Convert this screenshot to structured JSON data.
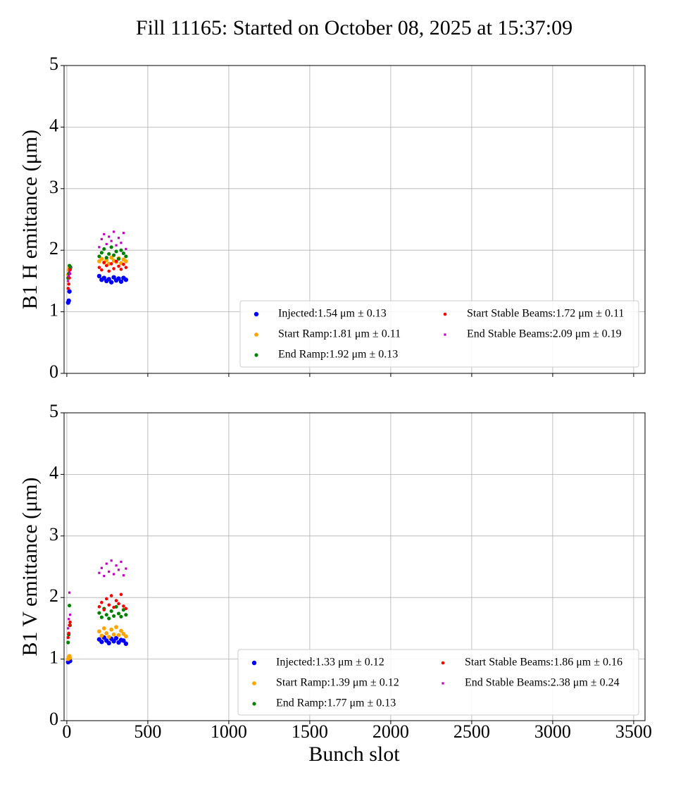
{
  "chart_data": [
    {
      "type": "scatter",
      "title": "Fill 11165: Started on October 08, 2025 at 15:37:09",
      "ylabel": "B1 H emittance (μm)",
      "xlim": [
        -17,
        3570
      ],
      "ylim": [
        0,
        5
      ],
      "xticks": [
        0,
        500,
        1000,
        1500,
        2000,
        2500,
        3000,
        3500
      ],
      "yticks": [
        0,
        1,
        2,
        3,
        4,
        5
      ],
      "show_xtick_labels": false,
      "grid": true,
      "legend_loc": "lower right",
      "legend_columns": 2,
      "x": [
        8,
        12,
        16,
        20,
        200,
        215,
        230,
        245,
        260,
        275,
        290,
        305,
        320,
        335,
        350,
        365
      ],
      "series": [
        {
          "name": "Injected:1.54 μm ± 0.13",
          "color": "#0000ff",
          "marker": "o",
          "marker_size": 3.2,
          "values": [
            1.15,
            1.18,
            1.33,
            1.72,
            1.58,
            1.52,
            1.55,
            1.5,
            1.53,
            1.48,
            1.56,
            1.51,
            1.54,
            1.49,
            1.55,
            1.52
          ]
        },
        {
          "name": "Start Ramp:1.81 μm ± 0.11",
          "color": "#ffa500",
          "marker": "o",
          "marker_size": 2.9,
          "values": [
            1.6,
            1.68,
            1.72,
            1.7,
            1.82,
            1.86,
            1.8,
            1.84,
            1.78,
            1.88,
            1.83,
            1.81,
            1.87,
            1.79,
            1.85,
            1.82
          ]
        },
        {
          "name": "End Ramp:1.92 μm ± 0.13",
          "color": "#008000",
          "marker": "o",
          "marker_size": 2.6,
          "values": [
            1.55,
            1.62,
            1.75,
            1.7,
            1.9,
            1.96,
            2.02,
            1.88,
            1.94,
            2.05,
            1.92,
            1.98,
            1.86,
            2.0,
            1.95,
            1.9
          ]
        },
        {
          "name": "Start Stable Beams:1.72 μm ± 0.11",
          "color": "#ff0000",
          "marker": "o",
          "marker_size": 2.3,
          "values": [
            1.38,
            1.45,
            1.55,
            1.68,
            1.72,
            1.68,
            1.8,
            1.75,
            1.66,
            1.78,
            1.7,
            1.82,
            1.74,
            1.69,
            1.77,
            1.72
          ]
        },
        {
          "name": "End Stable Beams:2.09 μm ± 0.19",
          "color": "#bf00bf",
          "marker": "s",
          "marker_size": 1.6,
          "values": [
            1.5,
            1.58,
            1.65,
            1.62,
            2.05,
            2.18,
            2.26,
            2.1,
            2.22,
            2.15,
            2.3,
            2.08,
            2.2,
            2.12,
            2.28,
            2.02
          ]
        }
      ]
    },
    {
      "type": "scatter",
      "ylabel": "B1 V emittance (μm)",
      "xlabel": "Bunch slot",
      "xlim": [
        -17,
        3570
      ],
      "ylim": [
        0,
        5
      ],
      "xticks": [
        0,
        500,
        1000,
        1500,
        2000,
        2500,
        3000,
        3500
      ],
      "yticks": [
        0,
        1,
        2,
        3,
        4,
        5
      ],
      "show_xtick_labels": true,
      "grid": true,
      "legend_loc": "lower right",
      "legend_columns": 2,
      "x": [
        8,
        12,
        16,
        20,
        200,
        215,
        230,
        245,
        260,
        275,
        290,
        305,
        320,
        335,
        350,
        365
      ],
      "series": [
        {
          "name": "Injected:1.33 μm ± 0.12",
          "color": "#0000ff",
          "marker": "o",
          "marker_size": 3.2,
          "values": [
            0.95,
            0.98,
            1.0,
            0.97,
            1.32,
            1.28,
            1.35,
            1.3,
            1.26,
            1.33,
            1.29,
            1.34,
            1.27,
            1.31,
            1.3,
            1.25
          ]
        },
        {
          "name": "Start Ramp:1.39 μm ± 0.12",
          "color": "#ffa500",
          "marker": "o",
          "marker_size": 2.9,
          "values": [
            1.0,
            1.03,
            1.05,
            1.02,
            1.45,
            1.38,
            1.5,
            1.42,
            1.36,
            1.48,
            1.4,
            1.52,
            1.39,
            1.46,
            1.41,
            1.37
          ]
        },
        {
          "name": "End Ramp:1.77 μm ± 0.13",
          "color": "#008000",
          "marker": "o",
          "marker_size": 2.6,
          "values": [
            1.27,
            1.4,
            1.87,
            1.55,
            1.75,
            1.68,
            1.82,
            1.72,
            1.66,
            1.78,
            1.7,
            1.85,
            1.74,
            1.69,
            1.8,
            1.72
          ]
        },
        {
          "name": "Start Stable Beams:1.86 μm ± 0.16",
          "color": "#ff0000",
          "marker": "o",
          "marker_size": 2.3,
          "values": [
            1.35,
            1.42,
            1.55,
            1.6,
            1.85,
            1.92,
            1.8,
            1.98,
            1.88,
            2.03,
            1.84,
            1.95,
            1.9,
            2.05,
            1.86,
            1.82
          ]
        },
        {
          "name": "End Stable Beams:2.38 μm ± 0.24",
          "color": "#bf00bf",
          "marker": "s",
          "marker_size": 1.6,
          "values": [
            1.5,
            1.65,
            2.08,
            1.72,
            2.4,
            2.48,
            2.35,
            2.55,
            2.42,
            2.6,
            2.38,
            2.52,
            2.45,
            2.58,
            2.36,
            2.47
          ]
        }
      ]
    }
  ]
}
